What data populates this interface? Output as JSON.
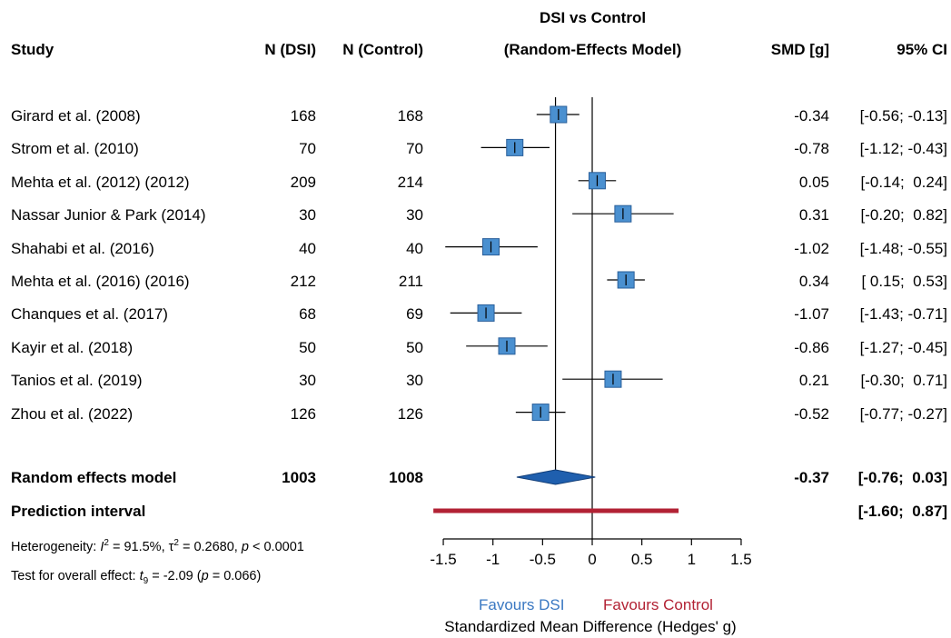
{
  "chart_data": {
    "type": "forest",
    "title": "DSI vs Control",
    "subtitle": "(Random-Effects Model)",
    "columns": {
      "study": "Study",
      "n_dsi": "N (DSI)",
      "n_control": "N (Control)",
      "smd": "SMD [g]",
      "ci": "95% CI"
    },
    "studies": [
      {
        "label": "Girard et al. (2008)",
        "n_dsi": "168",
        "n_control": "168",
        "smd": -0.34,
        "lo": -0.56,
        "hi": -0.13,
        "smd_text": "-0.34",
        "ci_text": "[-0.56; -0.13]"
      },
      {
        "label": "Strom et al. (2010)",
        "n_dsi": "70",
        "n_control": "70",
        "smd": -0.78,
        "lo": -1.12,
        "hi": -0.43,
        "smd_text": "-0.78",
        "ci_text": "[-1.12; -0.43]"
      },
      {
        "label": "Mehta et al. (2012) (2012)",
        "n_dsi": "209",
        "n_control": "214",
        "smd": 0.05,
        "lo": -0.14,
        "hi": 0.24,
        "smd_text": "0.05",
        "ci_text": "[-0.14;  0.24]"
      },
      {
        "label": "Nassar Junior & Park (2014)",
        "n_dsi": "30",
        "n_control": "30",
        "smd": 0.31,
        "lo": -0.2,
        "hi": 0.82,
        "smd_text": "0.31",
        "ci_text": "[-0.20;  0.82]"
      },
      {
        "label": "Shahabi et al. (2016)",
        "n_dsi": "40",
        "n_control": "40",
        "smd": -1.02,
        "lo": -1.48,
        "hi": -0.55,
        "smd_text": "-1.02",
        "ci_text": "[-1.48; -0.55]"
      },
      {
        "label": "Mehta et al. (2016) (2016)",
        "n_dsi": "212",
        "n_control": "211",
        "smd": 0.34,
        "lo": 0.15,
        "hi": 0.53,
        "smd_text": "0.34",
        "ci_text": "[ 0.15;  0.53]"
      },
      {
        "label": "Chanques et al. (2017)",
        "n_dsi": "68",
        "n_control": "69",
        "smd": -1.07,
        "lo": -1.43,
        "hi": -0.71,
        "smd_text": "-1.07",
        "ci_text": "[-1.43; -0.71]"
      },
      {
        "label": "Kayir et al. (2018)",
        "n_dsi": "50",
        "n_control": "50",
        "smd": -0.86,
        "lo": -1.27,
        "hi": -0.45,
        "smd_text": "-0.86",
        "ci_text": "[-1.27; -0.45]"
      },
      {
        "label": "Tanios et al. (2019)",
        "n_dsi": "30",
        "n_control": "30",
        "smd": 0.21,
        "lo": -0.3,
        "hi": 0.71,
        "smd_text": "0.21",
        "ci_text": "[-0.30;  0.71]"
      },
      {
        "label": "Zhou et al. (2022)",
        "n_dsi": "126",
        "n_control": "126",
        "smd": -0.52,
        "lo": -0.77,
        "hi": -0.27,
        "smd_text": "-0.52",
        "ci_text": "[-0.77; -0.27]"
      }
    ],
    "random_effects": {
      "label": "Random effects model",
      "n_dsi": "1003",
      "n_control": "1008",
      "smd": -0.37,
      "lo": -0.76,
      "hi": 0.03,
      "smd_text": "-0.37",
      "ci_text": "[-0.76;  0.03]"
    },
    "prediction_interval": {
      "label": "Prediction interval",
      "lo": -1.6,
      "hi": 0.87,
      "ci_text": "[-1.60;  0.87]"
    },
    "heterogeneity": {
      "prefix": "Heterogeneity: ",
      "i2_label": "I",
      "i2_value": " = 91.5%, ",
      "tau2_label": "τ",
      "tau2_value": " = 0.2680, ",
      "p_label": "p",
      "p_value": " < 0.0001"
    },
    "overall_effect": {
      "prefix": "Test for overall effect: ",
      "t_label": "t",
      "t_sub": "9",
      "t_value": " = -2.09 (",
      "p_label": "p",
      "p_value": " = 0.066)"
    },
    "x_ticks": [
      -1.5,
      -1,
      -0.5,
      0,
      0.5,
      1,
      1.5
    ],
    "x_tick_labels": [
      "-1.5",
      "-1",
      "-0.5",
      "0",
      "0.5",
      "1",
      "1.5"
    ],
    "xlim": [
      -1.5,
      1.5
    ],
    "xlabel": "Standardized Mean Difference (Hedges' g)",
    "favours_left": "Favours DSI",
    "favours_right": "Favours Control",
    "colors": {
      "box": "#4a90d0",
      "box_border": "#2a5f9a",
      "diamond": "#1f5fae",
      "prediction": "#b22234",
      "favours_left": "#3a78c2",
      "favours_right": "#b22234"
    }
  }
}
